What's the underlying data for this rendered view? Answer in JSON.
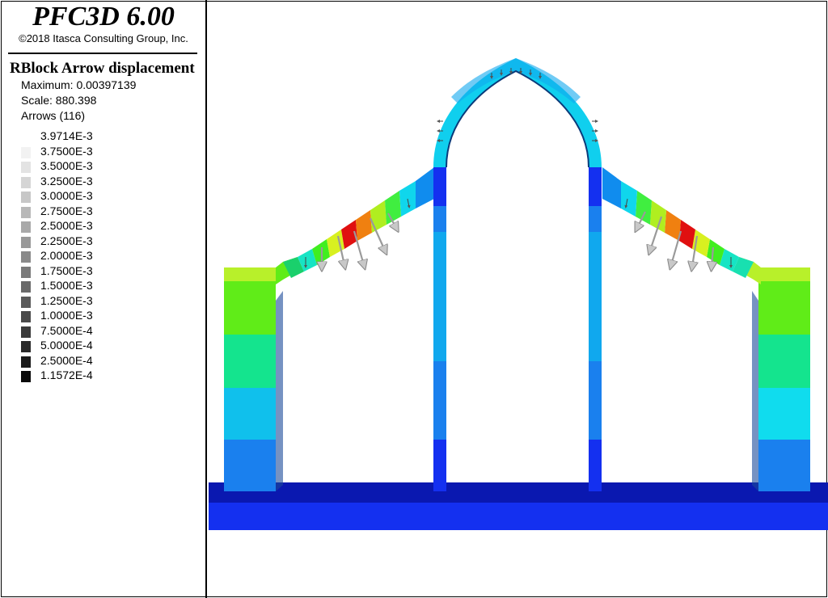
{
  "header": {
    "title": "PFC3D 6.00",
    "copyright": "©2018 Itasca Consulting Group, Inc."
  },
  "legend": {
    "plot_label": "RBlock Arrow displacement",
    "maximum": "Maximum: 0.00397139",
    "scale": "Scale: 880.398",
    "arrows": "Arrows (116)",
    "entries": [
      {
        "label": "3.9714E-3",
        "color": ""
      },
      {
        "label": "3.7500E-3",
        "color": "#f2f2f2"
      },
      {
        "label": "3.5000E-3",
        "color": "#e3e3e3"
      },
      {
        "label": "3.2500E-3",
        "color": "#d5d5d5"
      },
      {
        "label": "3.0000E-3",
        "color": "#c7c7c7"
      },
      {
        "label": "2.7500E-3",
        "color": "#b8b8b8"
      },
      {
        "label": "2.5000E-3",
        "color": "#a9a9a9"
      },
      {
        "label": "2.2500E-3",
        "color": "#999999"
      },
      {
        "label": "2.0000E-3",
        "color": "#8a8a8a"
      },
      {
        "label": "1.7500E-3",
        "color": "#7a7a7a"
      },
      {
        "label": "1.5000E-3",
        "color": "#6a6a6a"
      },
      {
        "label": "1.2500E-3",
        "color": "#5a5a5a"
      },
      {
        "label": "1.0000E-3",
        "color": "#4a4a4a"
      },
      {
        "label": "7.5000E-4",
        "color": "#3a3a3a"
      },
      {
        "label": "5.0000E-4",
        "color": "#2a2a2a"
      },
      {
        "label": "2.5000E-4",
        "color": "#1a1a1a"
      },
      {
        "label": "1.1572E-4",
        "color": "#0a0a0a"
      }
    ]
  }
}
